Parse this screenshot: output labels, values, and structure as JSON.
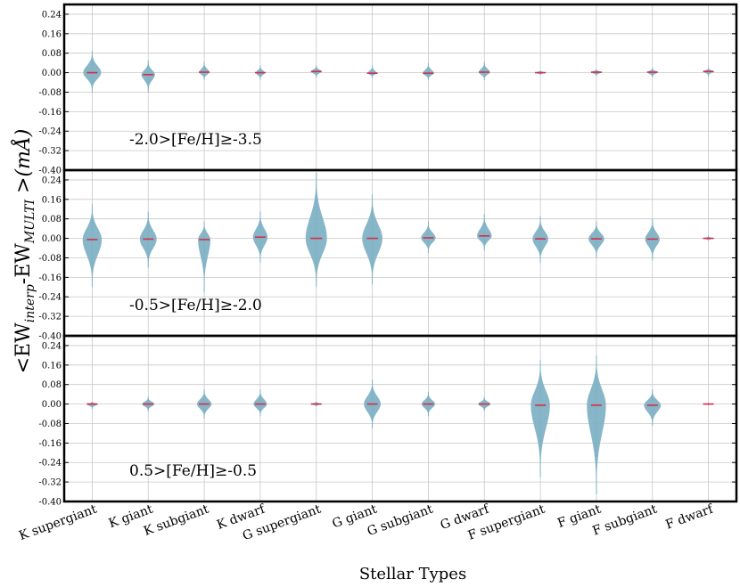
{
  "chart_data": {
    "type": "violin",
    "categories": [
      "K supergiant",
      "K giant",
      "K subgiant",
      "K dwarf",
      "G supergiant",
      "G giant",
      "G subgiant",
      "G dwarf",
      "F supergiant",
      "F giant",
      "F subgiant",
      "F dwarf"
    ],
    "xlabel": "Stellar Types",
    "ylabel": {
      "prefix": "<EW",
      "sub1": "interp",
      "mid": "-EW",
      "sub2": "MULTI",
      "suffix": " >(mÅ)"
    },
    "ylim": [
      -0.4,
      0.28
    ],
    "yticks": [
      -0.4,
      -0.32,
      -0.24,
      -0.16,
      -0.08,
      0.0,
      0.08,
      0.16,
      0.24
    ],
    "ytick_labels": [
      "-0.40",
      "-0.32",
      "-0.24",
      "-0.16",
      "-0.08",
      "0.00",
      "0.08",
      "0.16",
      "0.24"
    ],
    "grid": true,
    "colors": {
      "violin": "#7fb2c4",
      "median": "#d62d4a",
      "grid": "#c8c8c8",
      "frame": "#000000"
    },
    "panels": [
      {
        "label": "-2.0>[Fe/H]≥-3.5",
        "series": [
          {
            "median": 0.0,
            "min": -0.08,
            "max": 0.09,
            "halfwidth": 0.16
          },
          {
            "median": -0.008,
            "min": -0.08,
            "max": 0.05,
            "halfwidth": 0.12
          },
          {
            "median": 0.002,
            "min": -0.03,
            "max": 0.045,
            "halfwidth": 0.09
          },
          {
            "median": 0.0,
            "min": -0.03,
            "max": 0.03,
            "halfwidth": 0.08
          },
          {
            "median": 0.005,
            "min": -0.02,
            "max": 0.03,
            "halfwidth": 0.09
          },
          {
            "median": -0.002,
            "min": -0.02,
            "max": 0.03,
            "halfwidth": 0.08
          },
          {
            "median": -0.002,
            "min": -0.03,
            "max": 0.04,
            "halfwidth": 0.1
          },
          {
            "median": 0.002,
            "min": -0.03,
            "max": 0.045,
            "halfwidth": 0.1
          },
          {
            "median": 0.0,
            "min": -0.01,
            "max": 0.01,
            "halfwidth": 0.09
          },
          {
            "median": 0.002,
            "min": -0.015,
            "max": 0.015,
            "halfwidth": 0.09
          },
          {
            "median": 0.002,
            "min": -0.02,
            "max": 0.02,
            "halfwidth": 0.09
          },
          {
            "median": 0.005,
            "min": -0.015,
            "max": 0.02,
            "halfwidth": 0.09
          }
        ]
      },
      {
        "label": "-0.5>[Fe/H]≥-2.0",
        "series": [
          {
            "median": -0.005,
            "min": -0.2,
            "max": 0.14,
            "halfwidth": 0.17
          },
          {
            "median": -0.003,
            "min": -0.12,
            "max": 0.11,
            "halfwidth": 0.15
          },
          {
            "median": -0.005,
            "min": -0.22,
            "max": 0.07,
            "halfwidth": 0.11
          },
          {
            "median": 0.005,
            "min": -0.1,
            "max": 0.11,
            "halfwidth": 0.13
          },
          {
            "median": 0.0,
            "min": -0.2,
            "max": 0.27,
            "halfwidth": 0.19
          },
          {
            "median": 0.0,
            "min": -0.19,
            "max": 0.18,
            "halfwidth": 0.18
          },
          {
            "median": 0.002,
            "min": -0.06,
            "max": 0.07,
            "halfwidth": 0.13
          },
          {
            "median": 0.01,
            "min": -0.05,
            "max": 0.1,
            "halfwidth": 0.13
          },
          {
            "median": -0.002,
            "min": -0.1,
            "max": 0.09,
            "halfwidth": 0.14
          },
          {
            "median": -0.002,
            "min": -0.08,
            "max": 0.07,
            "halfwidth": 0.14
          },
          {
            "median": -0.003,
            "min": -0.09,
            "max": 0.08,
            "halfwidth": 0.13
          },
          {
            "median": 0.0,
            "min": -0.01,
            "max": 0.01,
            "halfwidth": 0.08
          }
        ]
      },
      {
        "label": "0.5>[Fe/H]≥-0.5",
        "series": [
          {
            "median": 0.0,
            "min": -0.02,
            "max": 0.01,
            "halfwidth": 0.1
          },
          {
            "median": 0.0,
            "min": -0.03,
            "max": 0.03,
            "halfwidth": 0.11
          },
          {
            "median": 0.0,
            "min": -0.06,
            "max": 0.06,
            "halfwidth": 0.13
          },
          {
            "median": 0.0,
            "min": -0.05,
            "max": 0.06,
            "halfwidth": 0.12
          },
          {
            "median": 0.0,
            "min": -0.01,
            "max": 0.01,
            "halfwidth": 0.1
          },
          {
            "median": 0.0,
            "min": -0.1,
            "max": 0.1,
            "halfwidth": 0.15
          },
          {
            "median": 0.0,
            "min": -0.05,
            "max": 0.05,
            "halfwidth": 0.12
          },
          {
            "median": 0.0,
            "min": -0.03,
            "max": 0.03,
            "halfwidth": 0.11
          },
          {
            "median": -0.005,
            "min": -0.3,
            "max": 0.18,
            "halfwidth": 0.17
          },
          {
            "median": -0.005,
            "min": -0.37,
            "max": 0.2,
            "halfwidth": 0.17
          },
          {
            "median": -0.005,
            "min": -0.09,
            "max": 0.06,
            "halfwidth": 0.15
          },
          {
            "median": 0.0,
            "min": -0.005,
            "max": 0.005,
            "halfwidth": 0.07
          }
        ]
      }
    ]
  }
}
